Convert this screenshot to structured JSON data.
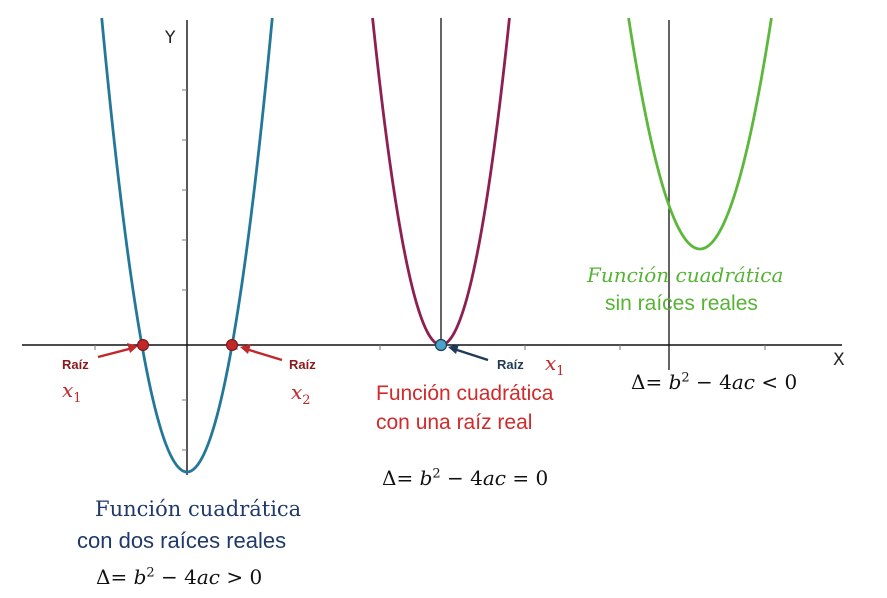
{
  "axes": {
    "x_label": "X",
    "y_label": "Y"
  },
  "colors": {
    "two_roots": "#23789a",
    "one_root": "#8e1f52",
    "no_roots": "#5cb83a",
    "root_point": "#c0282a",
    "vertex_point": "#4aa3c8",
    "arrow_red": "#c0282a",
    "arrow_navy": "#1f3a5a",
    "caption_navy": "#1f3a6a",
    "caption_red": "#d22a2a",
    "caption_green": "#56b435"
  },
  "roots": {
    "left": {
      "label": "Raíz",
      "var": "x",
      "sub": "1"
    },
    "right": {
      "label": "Raíz",
      "var": "x",
      "sub": "2"
    },
    "middle": {
      "label": "Raíz",
      "var": "x",
      "sub": "1"
    }
  },
  "captions": {
    "two_roots": {
      "line1": "Función cuadrática",
      "line2": "con dos raíces reales",
      "formula_left": "Δ= ",
      "formula_b": "b",
      "formula_exp": "2",
      "formula_mid": " − 4",
      "formula_ac": "ac",
      "formula_rel": " > 0"
    },
    "one_root": {
      "line1": "Función cuadrática",
      "line2": "con una raíz real",
      "formula_left": "Δ= ",
      "formula_b": "b",
      "formula_exp": "2",
      "formula_mid": " − 4",
      "formula_ac": "ac",
      "formula_rel": " = 0"
    },
    "no_roots": {
      "line1": "Función cuadrática",
      "line2": "sin raíces reales",
      "formula_left": "Δ= ",
      "formula_b": "b",
      "formula_exp": "2",
      "formula_mid": " − 4",
      "formula_ac": "ac",
      "formula_rel": " < 0"
    }
  }
}
